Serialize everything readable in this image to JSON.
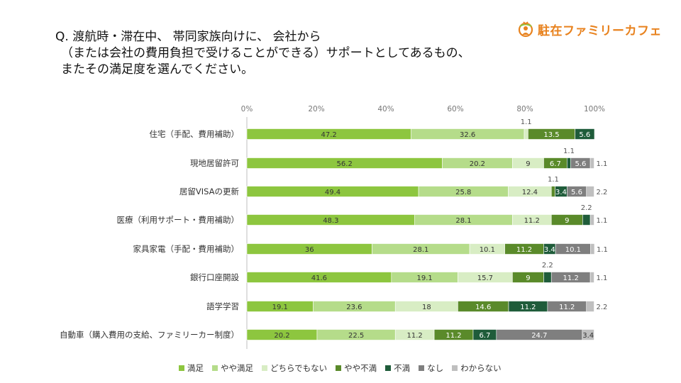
{
  "question": {
    "line1": "Q. 渡航時・滞在中、 帯同家族向けに、 会社から",
    "line2": "（または会社の費用負担で受けることができる）サポートとしてあるもの、",
    "line3": "またその満足度を選んでください。"
  },
  "logo": {
    "text": "駐在ファミリーカフェ",
    "icon": "globe-person-icon",
    "color": "#e8821e"
  },
  "chart_data": {
    "type": "bar",
    "orientation": "horizontal",
    "stacked": true,
    "xlim": [
      0,
      100
    ],
    "ticks": [
      "0%",
      "20%",
      "40%",
      "60%",
      "80%",
      "100%"
    ],
    "categories": [
      "住宅（手配、費用補助）",
      "現地居留許可",
      "居留VISAの更新",
      "医療（利用サポート・費用補助）",
      "家具家電（手配・費用補助）",
      "銀行口座開設",
      "語学学習",
      "自動車（購入費用の支給、ファミリーカー制度）"
    ],
    "series": [
      {
        "name": "満足",
        "color": "#8dc63f",
        "values": [
          47.2,
          56.2,
          49.4,
          48.3,
          36,
          41.6,
          19.1,
          20.2
        ]
      },
      {
        "name": "やや満足",
        "color": "#b5dc8a",
        "values": [
          32.6,
          20.2,
          25.8,
          28.1,
          28.1,
          19.1,
          23.6,
          22.5
        ]
      },
      {
        "name": "どちらでもない",
        "color": "#d8edc4",
        "values": [
          1.1,
          9,
          12.4,
          11.2,
          10.1,
          15.7,
          18,
          11.2
        ]
      },
      {
        "name": "やや不満",
        "color": "#5a8a2a",
        "values": [
          13.5,
          6.7,
          1.1,
          9,
          11.2,
          9,
          14.6,
          11.2
        ]
      },
      {
        "name": "不満",
        "color": "#1f5c3a",
        "values": [
          5.6,
          1.1,
          3.4,
          2.2,
          3.4,
          2.2,
          11.2,
          6.7
        ]
      },
      {
        "name": "なし",
        "color": "#7f7f7f",
        "values": [
          0,
          5.6,
          5.6,
          0,
          10.1,
          11.2,
          11.2,
          24.7
        ]
      },
      {
        "name": "わからない",
        "color": "#bfbfbf",
        "values": [
          0,
          1.1,
          2.2,
          1.1,
          1.1,
          1.1,
          2.2,
          3.4
        ]
      }
    ],
    "legend_position": "bottom"
  }
}
